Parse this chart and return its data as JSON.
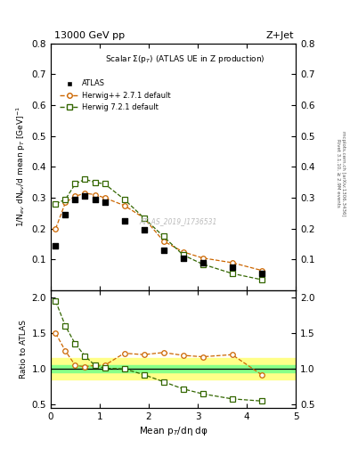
{
  "title_top": "13000 GeV pp",
  "title_right": "Z+Jet",
  "plot_title": "Scalar Σ(p$_T$) (ATLAS UE in Z production)",
  "ylabel_main": "1/N$_{ev}$ dN$_{ev}$/d mean p$_T$ [GeV]$^{-1}$",
  "ylabel_ratio": "Ratio to ATLAS",
  "xlabel": "Mean p$_T$/dη dφ",
  "watermark": "ATLAS_2019_I1736531",
  "right_label1": "Rivet 3.1.10, ≥ 2.9M events",
  "right_label2": "mcplots.cern.ch [arXiv:1306.3436]",
  "atlas_x": [
    0.1,
    0.3,
    0.5,
    0.7,
    0.9,
    1.1,
    1.5,
    1.9,
    2.3,
    2.7,
    3.1,
    3.7,
    4.3
  ],
  "atlas_y": [
    0.145,
    0.245,
    0.295,
    0.305,
    0.295,
    0.285,
    0.225,
    0.195,
    0.13,
    0.105,
    0.09,
    0.075,
    0.055
  ],
  "herwig_x": [
    0.1,
    0.3,
    0.5,
    0.7,
    0.9,
    1.1,
    1.5,
    1.9,
    2.3,
    2.7,
    3.1,
    3.7,
    4.3
  ],
  "herwig_y": [
    0.2,
    0.285,
    0.305,
    0.315,
    0.31,
    0.3,
    0.275,
    0.235,
    0.16,
    0.125,
    0.105,
    0.09,
    0.065
  ],
  "herwig7_x": [
    0.1,
    0.3,
    0.5,
    0.7,
    0.9,
    1.1,
    1.5,
    1.9,
    2.3,
    2.7,
    3.1,
    3.7,
    4.3
  ],
  "herwig7_y": [
    0.28,
    0.295,
    0.345,
    0.36,
    0.35,
    0.345,
    0.295,
    0.235,
    0.175,
    0.115,
    0.085,
    0.055,
    0.035
  ],
  "ratio_herwig_x": [
    0.1,
    0.3,
    0.5,
    0.7,
    0.9,
    1.1,
    1.5,
    1.9,
    2.3,
    2.7,
    3.1,
    3.7,
    4.3
  ],
  "ratio_herwig_y": [
    1.5,
    1.25,
    1.05,
    1.03,
    1.05,
    1.05,
    1.22,
    1.2,
    1.23,
    1.19,
    1.17,
    1.2,
    0.92
  ],
  "ratio_herwig7_x": [
    0.1,
    0.3,
    0.5,
    0.7,
    0.9,
    1.1,
    1.5,
    1.9,
    2.3,
    2.7,
    3.1,
    3.7,
    4.3
  ],
  "ratio_herwig7_y": [
    1.95,
    1.6,
    1.35,
    1.18,
    1.05,
    1.01,
    1.0,
    0.92,
    0.82,
    0.72,
    0.65,
    0.58,
    0.55
  ],
  "atlas_color": "#000000",
  "herwig_color": "#cc6600",
  "herwig7_color": "#336600",
  "band_yellow": [
    0.85,
    1.15
  ],
  "band_green": [
    0.95,
    1.05
  ],
  "ylim_main": [
    0.0,
    0.8
  ],
  "ylim_ratio": [
    0.45,
    2.1
  ],
  "xlim": [
    0.0,
    5.0
  ],
  "yticks_main": [
    0.1,
    0.2,
    0.3,
    0.4,
    0.5,
    0.6,
    0.7,
    0.8
  ],
  "yticks_ratio": [
    0.5,
    1.0,
    1.5,
    2.0
  ],
  "xticks": [
    0,
    1,
    2,
    3,
    4,
    5
  ],
  "legend_labels": [
    "ATLAS",
    "Herwig++ 2.7.1 default",
    "Herwig 7.2.1 default"
  ]
}
